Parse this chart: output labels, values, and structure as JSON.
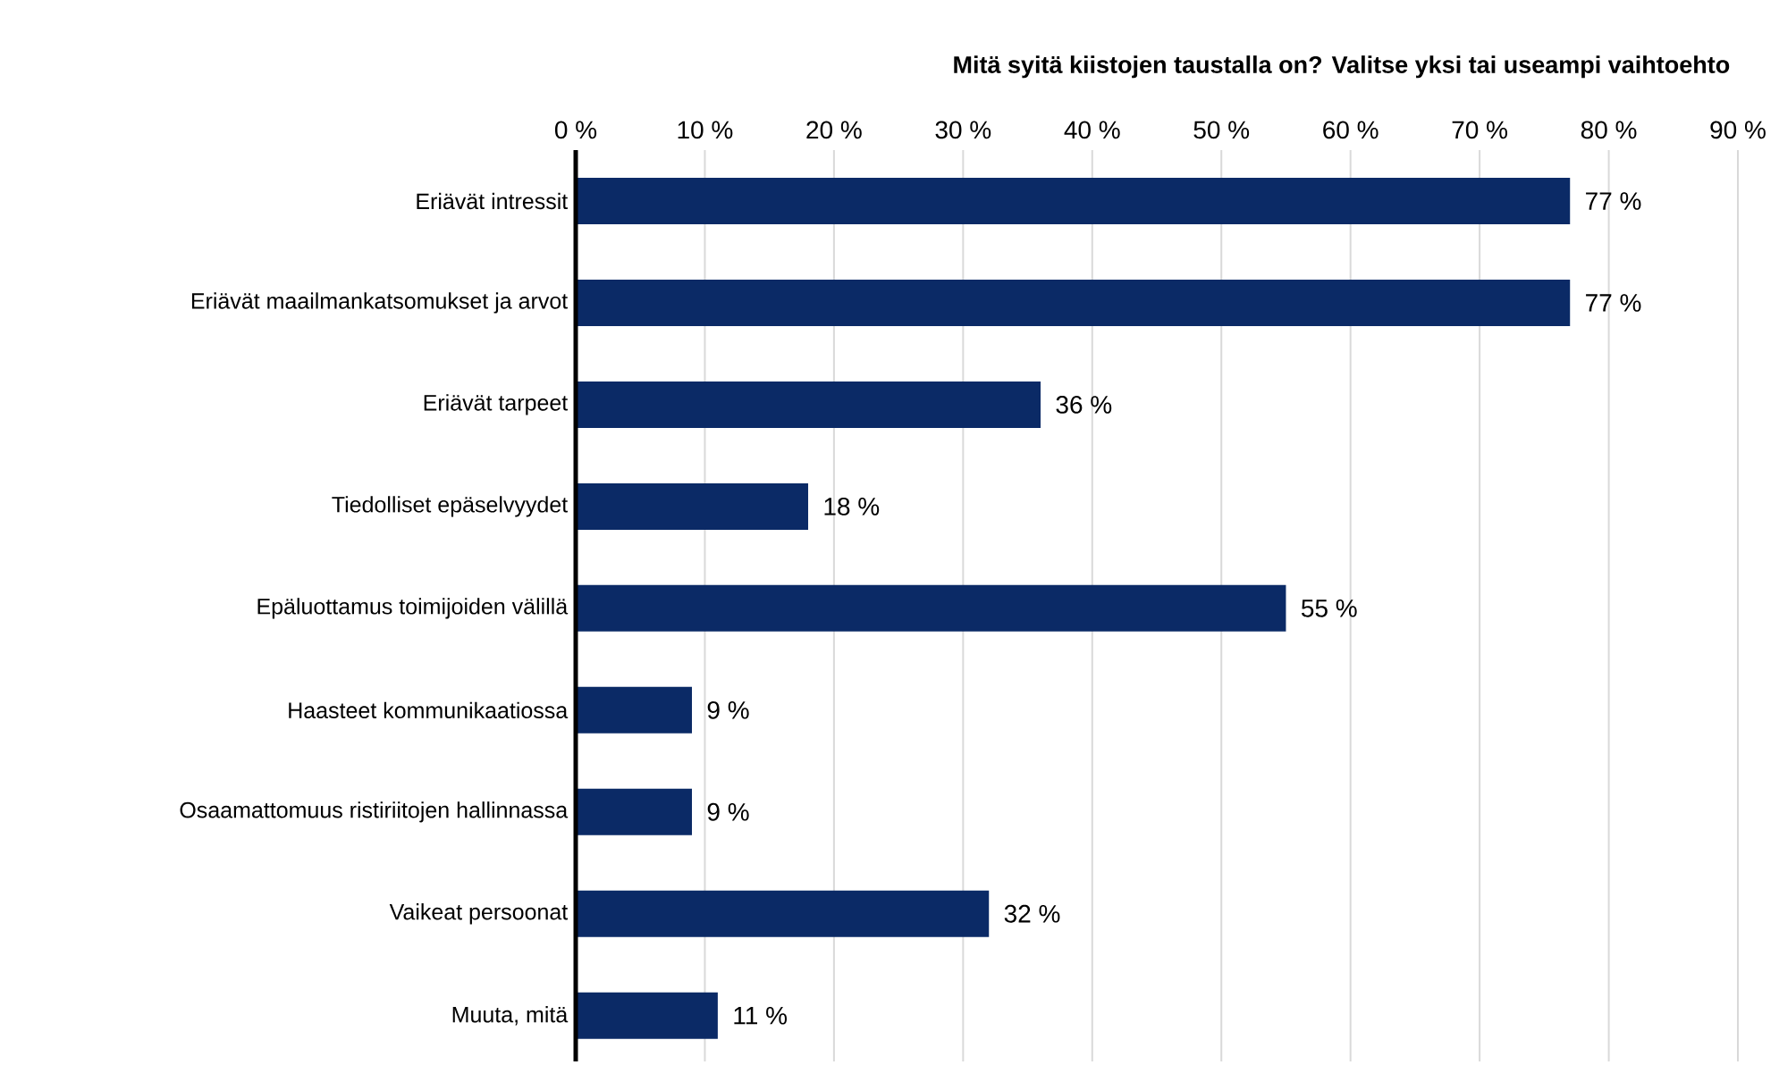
{
  "chart_data": {
    "type": "bar",
    "orientation": "horizontal",
    "title": "Mitä syitä kiistojen taustalla on? Valitse yksi tai useampi vaihtoehto",
    "categories": [
      "Eriävät intressit",
      "Eriävät maailmankatsomukset ja arvot",
      "Eriävät tarpeet",
      "Tiedolliset epäselvyydet",
      "Epäluottamus toimijoiden välillä",
      "Haasteet kommunikaatiossa",
      "Osaamattomuus ristiriitojen hallinnassa",
      "Vaikeat persoonat",
      "Muuta, mitä"
    ],
    "values": [
      77,
      77,
      36,
      18,
      55,
      9,
      9,
      32,
      11
    ],
    "value_labels": [
      "77 %",
      "77 %",
      "36 %",
      "18 %",
      "55 %",
      "9 %",
      "9 %",
      "32 %",
      "11 %"
    ],
    "color": "#0b2a66",
    "xlim": [
      0,
      90
    ],
    "xticks": [
      {
        "value": 0,
        "label": "0 %"
      },
      {
        "value": 10,
        "label": "10 %"
      },
      {
        "value": 20,
        "label": "20 %"
      },
      {
        "value": 30,
        "label": "30 %"
      },
      {
        "value": 40,
        "label": "40 %"
      },
      {
        "value": 50,
        "label": "50 %"
      },
      {
        "value": 60,
        "label": "60 %"
      },
      {
        "value": 70,
        "label": "70 %"
      },
      {
        "value": 80,
        "label": "80 %"
      },
      {
        "value": 90,
        "label": "90 %"
      }
    ],
    "grid": "x"
  }
}
